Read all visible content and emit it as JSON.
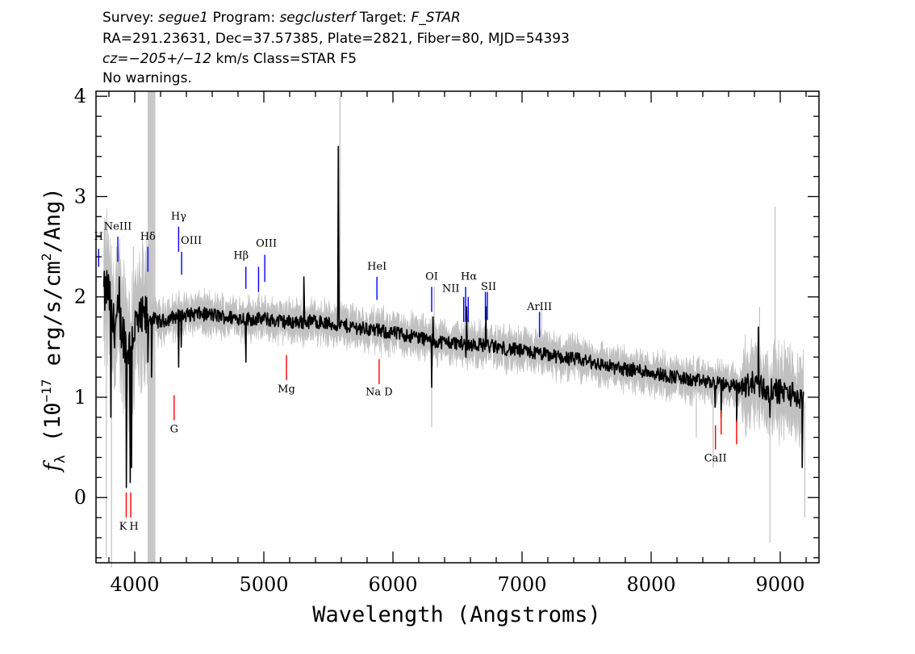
{
  "header": {
    "line1": {
      "survey_label": "Survey: ",
      "survey": "segue1",
      "program_label": " Program: ",
      "program": "segclusterf",
      "target_label": " Target: ",
      "target": "F_STAR"
    },
    "line2": "RA=291.23631, Dec=37.57385, Plate=2821, Fiber=80, MJD=54393",
    "line3": {
      "cz": "cz=−205+/−12",
      "rest": " km/s Class=STAR F5"
    },
    "line4": "No warnings."
  },
  "chart_data": {
    "type": "line",
    "xlabel": "Wavelength (Angstroms)",
    "ylabel": {
      "f": "f",
      "sub": "λ",
      "pre": " (10",
      "sup": "−17",
      "mid": " erg/s/cm",
      "sup2": "2",
      "post": "/Ang)"
    },
    "xlim": [
      3700,
      9300
    ],
    "ylim": [
      -0.65,
      4.05
    ],
    "xticks": [
      4000,
      5000,
      6000,
      7000,
      8000,
      9000
    ],
    "yticks": [
      0,
      1,
      2,
      3,
      4
    ],
    "masked_band": [
      4100,
      4160
    ],
    "series": [
      {
        "role": "flux",
        "color": "#000000",
        "knots": [
          [
            3760,
            2.0
          ],
          [
            3790,
            2.1
          ],
          [
            3830,
            1.7
          ],
          [
            3870,
            1.8
          ],
          [
            3920,
            1.6
          ],
          [
            3960,
            1.5
          ],
          [
            4000,
            1.7
          ],
          [
            4050,
            1.75
          ],
          [
            4100,
            1.8
          ],
          [
            4200,
            1.75
          ],
          [
            4300,
            1.8
          ],
          [
            4400,
            1.82
          ],
          [
            4500,
            1.83
          ],
          [
            4600,
            1.82
          ],
          [
            4700,
            1.8
          ],
          [
            4800,
            1.79
          ],
          [
            4900,
            1.78
          ],
          [
            5000,
            1.78
          ],
          [
            5100,
            1.76
          ],
          [
            5200,
            1.75
          ],
          [
            5300,
            1.75
          ],
          [
            5400,
            1.76
          ],
          [
            5500,
            1.73
          ],
          [
            5600,
            1.72
          ],
          [
            5700,
            1.7
          ],
          [
            5800,
            1.68
          ],
          [
            5900,
            1.66
          ],
          [
            6000,
            1.64
          ],
          [
            6100,
            1.62
          ],
          [
            6200,
            1.6
          ],
          [
            6300,
            1.56
          ],
          [
            6400,
            1.55
          ],
          [
            6500,
            1.54
          ],
          [
            6600,
            1.53
          ],
          [
            6700,
            1.52
          ],
          [
            6800,
            1.5
          ],
          [
            6900,
            1.48
          ],
          [
            7000,
            1.46
          ],
          [
            7100,
            1.44
          ],
          [
            7200,
            1.42
          ],
          [
            7300,
            1.4
          ],
          [
            7400,
            1.38
          ],
          [
            7500,
            1.36
          ],
          [
            7600,
            1.33
          ],
          [
            7700,
            1.3
          ],
          [
            7800,
            1.28
          ],
          [
            7900,
            1.27
          ],
          [
            8000,
            1.25
          ],
          [
            8100,
            1.22
          ],
          [
            8200,
            1.2
          ],
          [
            8300,
            1.17
          ],
          [
            8400,
            1.16
          ],
          [
            8500,
            1.14
          ],
          [
            8600,
            1.12
          ],
          [
            8700,
            1.1
          ],
          [
            8800,
            1.15
          ],
          [
            8900,
            1.06
          ],
          [
            9000,
            1.06
          ],
          [
            9100,
            1.03
          ],
          [
            9180,
            0.95
          ]
        ],
        "features": [
          [
            3745,
            -0.1
          ],
          [
            3760,
            2.1
          ],
          [
            3815,
            0.8
          ],
          [
            3880,
            2.2
          ],
          [
            3935,
            0.1
          ],
          [
            3965,
            0.15
          ],
          [
            3975,
            0.3
          ],
          [
            4102,
            1.35
          ],
          [
            4130,
            1.2
          ],
          [
            4340,
            1.3
          ],
          [
            4360,
            1.5
          ],
          [
            4861,
            1.35
          ],
          [
            5310,
            2.2
          ],
          [
            5577,
            3.5
          ],
          [
            5580,
            2.4
          ],
          [
            6300,
            1.1
          ],
          [
            6310,
            1.8
          ],
          [
            6565,
            1.4
          ],
          [
            6570,
            1.9
          ],
          [
            6720,
            1.9
          ],
          [
            8495,
            0.9
          ],
          [
            8542,
            0.8
          ],
          [
            8662,
            0.75
          ],
          [
            8830,
            1.7
          ],
          [
            8920,
            0.8
          ],
          [
            9170,
            0.3
          ],
          [
            9185,
            0.1
          ]
        ]
      },
      {
        "role": "noise-envelope",
        "color": "#c0c0c0",
        "spikes": [
          [
            3770,
            2.3
          ],
          [
            3780,
            -0.6
          ],
          [
            3820,
            -0.7
          ],
          [
            3860,
            2.5
          ],
          [
            3990,
            2.5
          ],
          [
            4120,
            2.5
          ],
          [
            5590,
            4.0
          ],
          [
            5587,
            2.6
          ],
          [
            6300,
            0.7
          ],
          [
            6320,
            2.1
          ],
          [
            7150,
            1.9
          ],
          [
            8350,
            0.6
          ],
          [
            8480,
            0.3
          ],
          [
            8840,
            1.9
          ],
          [
            8920,
            -0.45
          ],
          [
            8960,
            2.9
          ],
          [
            9060,
            1.5
          ],
          [
            9190,
            -0.2
          ],
          [
            9150,
            1.4
          ]
        ]
      }
    ],
    "lines_top": [
      {
        "label": "H",
        "wl": 3720,
        "y0": 2.3,
        "y1": 2.48,
        "color": "#0000ff",
        "label_dx": 0,
        "label_y": 2.57
      },
      {
        "label": "NeIII",
        "wl": 3869,
        "y0": 2.35,
        "y1": 2.6,
        "color": "#0000ff",
        "label_dx": 0,
        "label_y": 2.67
      },
      {
        "label": "Hδ",
        "wl": 4102,
        "y0": 2.25,
        "y1": 2.5,
        "color": "#0000ff",
        "label_dx": 0,
        "label_y": 2.57
      },
      {
        "label": "Hγ",
        "wl": 4340,
        "y0": 2.45,
        "y1": 2.7,
        "color": "#0000ff",
        "label_dx": 0,
        "label_y": 2.77
      },
      {
        "label": "OIII",
        "wl": 4363,
        "y0": 2.22,
        "y1": 2.45,
        "color": "#0000ff",
        "label_dx": 12,
        "label_y": 2.53
      },
      {
        "label": "Hβ",
        "wl": 4861,
        "y0": 2.08,
        "y1": 2.3,
        "color": "#0000ff",
        "label_dx": -6,
        "label_y": 2.38
      },
      {
        "label": "OIII",
        "wl": 4959,
        "y0": 2.05,
        "y1": 2.3,
        "color": "#0000ff",
        "label_dx": 0,
        "label_y": 0
      },
      {
        "label": "OIII",
        "wl": 5007,
        "y0": 2.15,
        "y1": 2.42,
        "color": "#0000ff",
        "label_dx": 2,
        "label_y": 2.5
      },
      {
        "label": "HeI",
        "wl": 5876,
        "y0": 1.97,
        "y1": 2.2,
        "color": "#0000ff",
        "label_dx": 0,
        "label_y": 2.27
      },
      {
        "label": "OI",
        "wl": 6300,
        "y0": 1.85,
        "y1": 2.1,
        "color": "#0000ff",
        "label_dx": 0,
        "label_y": 2.17
      },
      {
        "label": "NII",
        "wl": 6548,
        "y0": 1.75,
        "y1": 2.0,
        "color": "#0000ff",
        "label_dx": -16,
        "label_y": 2.05
      },
      {
        "label": "Hα",
        "wl": 6563,
        "y0": 1.75,
        "y1": 2.1,
        "color": "#0000ff",
        "label_dx": 4,
        "label_y": 2.17
      },
      {
        "label": "NII",
        "wl": 6583,
        "y0": 1.75,
        "y1": 2.0,
        "color": "#0000ff",
        "label_dx": 0,
        "label_y": 0
      },
      {
        "label": "SII",
        "wl": 6716,
        "y0": 1.77,
        "y1": 2.05,
        "color": "#0000ff",
        "label_dx": 4,
        "label_y": 2.07
      },
      {
        "label": "SII",
        "wl": 6731,
        "y0": 1.77,
        "y1": 2.05,
        "color": "#0000ff",
        "label_dx": 0,
        "label_y": 0
      },
      {
        "label": "ArIII",
        "wl": 7135,
        "y0": 1.6,
        "y1": 1.85,
        "color": "#0000ff",
        "label_dx": 0,
        "label_y": 1.87
      }
    ],
    "lines_bottom": [
      {
        "label": "K",
        "wl": 3934,
        "y0": -0.2,
        "y1": 0.05,
        "color": "#ff0000",
        "label_dx": -4,
        "label_y": -0.32
      },
      {
        "label": "H",
        "wl": 3969,
        "y0": -0.2,
        "y1": 0.05,
        "color": "#ff0000",
        "label_dx": 4,
        "label_y": -0.32
      },
      {
        "label": "G",
        "wl": 4305,
        "y0": 0.77,
        "y1": 1.02,
        "color": "#ff0000",
        "label_dx": 0,
        "label_y": 0.65
      },
      {
        "label": "Mg",
        "wl": 5175,
        "y0": 1.17,
        "y1": 1.42,
        "color": "#ff0000",
        "label_dx": 0,
        "label_y": 1.05
      },
      {
        "label": "Na D",
        "wl": 5893,
        "y0": 1.13,
        "y1": 1.38,
        "color": "#ff0000",
        "label_dx": 0,
        "label_y": 1.02
      },
      {
        "label": "CaII",
        "wl": 8498,
        "y0": 0.48,
        "y1": 0.72,
        "color": "#ff0000",
        "label_dx": 0,
        "label_y": 0.36
      },
      {
        "label": "CaII",
        "wl": 8542,
        "y0": 0.63,
        "y1": 0.87,
        "color": "#ff0000",
        "label_dx": 0,
        "label_y": 0
      },
      {
        "label": "CaII",
        "wl": 8662,
        "y0": 0.53,
        "y1": 0.77,
        "color": "#ff0000",
        "label_dx": 0,
        "label_y": 0
      }
    ]
  }
}
